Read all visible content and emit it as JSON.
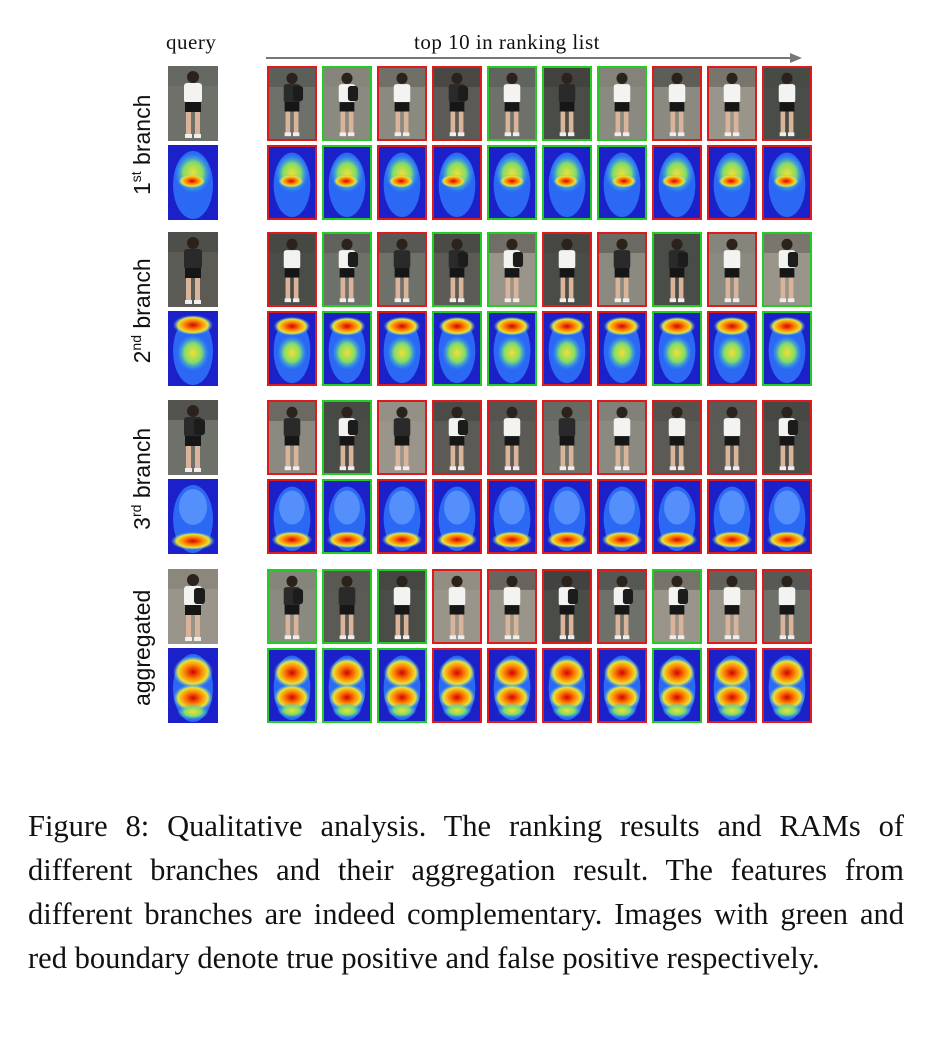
{
  "headers": {
    "query": "query",
    "top10": "top 10 in ranking list"
  },
  "rows": [
    {
      "label_base": "1",
      "label_sup": "st",
      "label_rest": " branch",
      "matches": [
        "fp",
        "tp",
        "fp",
        "fp",
        "tp",
        "tp",
        "tp",
        "fp",
        "fp",
        "fp"
      ]
    },
    {
      "label_base": "2",
      "label_sup": "nd",
      "label_rest": " branch",
      "matches": [
        "fp",
        "tp",
        "fp",
        "tp",
        "tp",
        "fp",
        "fp",
        "tp",
        "fp",
        "tp"
      ]
    },
    {
      "label_base": "3",
      "label_sup": "rd",
      "label_rest": " branch",
      "matches": [
        "fp",
        "tp",
        "fp",
        "fp",
        "fp",
        "fp",
        "fp",
        "fp",
        "fp",
        "fp"
      ]
    },
    {
      "label_base": "aggregated",
      "label_sup": "",
      "label_rest": "",
      "matches": [
        "tp",
        "tp",
        "tp",
        "fp",
        "fp",
        "fp",
        "fp",
        "tp",
        "fp",
        "fp"
      ]
    }
  ],
  "caption": "Figure 8: Qualitative analysis. The ranking results and RAMs of different branches and their aggregation result. The features from different branches are indeed complementary. Images with green and red boundary denote true positive and false positive respectively.",
  "colors": {
    "true_positive": "#22cc22",
    "false_positive": "#e01a1a"
  }
}
